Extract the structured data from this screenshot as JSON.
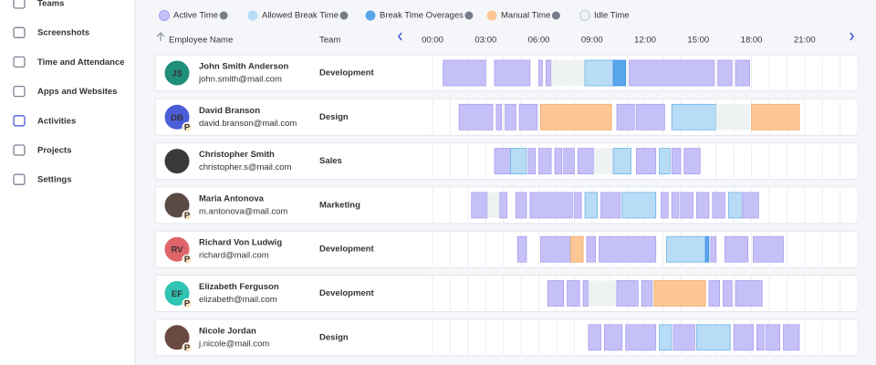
{
  "sidebar": [
    {
      "label": "Teams"
    },
    {
      "label": "Screenshots"
    },
    {
      "label": "Time and Attendance"
    },
    {
      "label": "Apps and Websites"
    },
    {
      "label": "Activities",
      "active": true
    },
    {
      "label": "Projects"
    },
    {
      "label": "Settings"
    }
  ],
  "legend": [
    {
      "label": "Active Time",
      "color": "#c6c0f8"
    },
    {
      "label": "Allowed Break Time",
      "color": "#b8dcf6"
    },
    {
      "label": "Break Time Overages",
      "color": "#5aa6ec"
    },
    {
      "label": "Manual Time",
      "color": "#fcc794"
    },
    {
      "label": "Idle Time",
      "color": "#eef2f2"
    }
  ],
  "columns": {
    "name": "Employee Name",
    "team": "Team"
  },
  "hours": [
    {
      "value": 0,
      "label": "00:00"
    },
    {
      "value": 3,
      "label": "03:00"
    },
    {
      "value": 6,
      "label": "06:00"
    },
    {
      "value": 9,
      "label": "09:00"
    },
    {
      "value": 12,
      "label": "12:00"
    },
    {
      "value": 15,
      "label": "15:00"
    },
    {
      "value": 18,
      "label": "18:00"
    },
    {
      "value": 21,
      "label": "21:00"
    }
  ],
  "rows": [
    {
      "initials": "JS",
      "avatar_color": "#1f8f7b",
      "name": "John Smith Anderson",
      "email": "john.smith@mail.com",
      "team": "Development",
      "segments": [
        [
          0.6,
          3.0,
          0
        ],
        [
          3.5,
          5.5,
          0
        ],
        [
          6.0,
          6.2,
          0
        ],
        [
          6.4,
          6.7,
          0
        ],
        [
          6.7,
          8.6,
          4
        ],
        [
          8.6,
          10.2,
          1
        ],
        [
          10.2,
          10.9,
          2
        ],
        [
          11.1,
          15.9,
          0
        ],
        [
          16.1,
          16.9,
          0
        ],
        [
          17.1,
          17.9,
          0
        ]
      ]
    },
    {
      "initials": "DB",
      "avatar_color": "#4c5dd8",
      "badge": "P",
      "name": "David Branson",
      "email": "david.branson@mail.com",
      "team": "Design",
      "segments": [
        [
          1.5,
          3.4,
          0
        ],
        [
          3.6,
          3.9,
          0
        ],
        [
          4.1,
          4.7,
          0
        ],
        [
          4.9,
          5.9,
          0
        ],
        [
          6.1,
          10.1,
          3
        ],
        [
          10.4,
          11.4,
          0
        ],
        [
          11.5,
          13.1,
          0
        ],
        [
          13.5,
          16.0,
          1
        ],
        [
          16.0,
          17.9,
          4
        ],
        [
          18.0,
          20.7,
          3
        ]
      ]
    },
    {
      "name": "Christopher Smith",
      "avatar_color": "#3a3a3a",
      "email": "christopher.s@mail.com",
      "team": "Sales",
      "segments": [
        [
          3.5,
          4.4,
          0
        ],
        [
          4.4,
          5.3,
          1
        ],
        [
          5.4,
          5.8,
          0
        ],
        [
          6.0,
          6.7,
          0
        ],
        [
          6.9,
          7.3,
          0
        ],
        [
          7.4,
          8.0,
          0
        ],
        [
          8.2,
          9.1,
          0
        ],
        [
          9.1,
          10.2,
          4
        ],
        [
          10.2,
          11.2,
          1
        ],
        [
          11.5,
          12.6,
          0
        ],
        [
          12.8,
          13.4,
          1
        ],
        [
          13.5,
          14.0,
          0
        ],
        [
          14.2,
          15.1,
          0
        ]
      ]
    },
    {
      "name": "Maria Antonova",
      "avatar_color": "#5a4a44",
      "badge": "P",
      "email": "m.antonova@mail.com",
      "team": "Marketing",
      "segments": [
        [
          2.2,
          3.1,
          0
        ],
        [
          3.1,
          3.8,
          4
        ],
        [
          3.8,
          4.2,
          0
        ],
        [
          4.7,
          5.3,
          0
        ],
        [
          5.5,
          7.9,
          0
        ],
        [
          8.0,
          8.4,
          0
        ],
        [
          8.6,
          9.3,
          1
        ],
        [
          9.5,
          10.6,
          0
        ],
        [
          10.7,
          12.6,
          1
        ],
        [
          12.9,
          13.3,
          0
        ],
        [
          13.5,
          13.9,
          0
        ],
        [
          14.0,
          14.7,
          0
        ],
        [
          14.9,
          15.6,
          0
        ],
        [
          15.8,
          16.5,
          0
        ],
        [
          16.7,
          17.5,
          1
        ],
        [
          17.5,
          18.4,
          0
        ]
      ]
    },
    {
      "initials": "RV",
      "avatar_color": "#e0656a",
      "badge": "P",
      "name": "Richard Von Ludwig",
      "email": "richard@mail.com",
      "team": "Development",
      "segments": [
        [
          4.8,
          5.3,
          0
        ],
        [
          6.1,
          7.8,
          0
        ],
        [
          7.8,
          8.5,
          3
        ],
        [
          8.7,
          9.2,
          0
        ],
        [
          9.4,
          12.6,
          0
        ],
        [
          13.2,
          15.4,
          1
        ],
        [
          15.4,
          15.6,
          2
        ],
        [
          15.7,
          16.0,
          0
        ],
        [
          16.5,
          17.8,
          0
        ],
        [
          18.1,
          19.8,
          0
        ]
      ]
    },
    {
      "initials": "EF",
      "avatar_color": "#2fc4b4",
      "badge": "P",
      "name": "Elizabeth Ferguson",
      "email": "elizabeth@mail.com",
      "team": "Development",
      "segments": [
        [
          6.5,
          7.4,
          0
        ],
        [
          7.6,
          8.3,
          0
        ],
        [
          8.5,
          8.8,
          0
        ],
        [
          8.8,
          10.4,
          4
        ],
        [
          10.4,
          11.6,
          0
        ],
        [
          11.8,
          12.4,
          0
        ],
        [
          12.5,
          15.4,
          3
        ],
        [
          15.6,
          16.2,
          0
        ],
        [
          16.4,
          16.9,
          0
        ],
        [
          17.1,
          18.6,
          0
        ]
      ]
    },
    {
      "name": "Nicole Jordan",
      "avatar_color": "#6a4a40",
      "badge": "P",
      "email": "j.nicole@mail.com",
      "team": "Design",
      "segments": [
        [
          8.8,
          9.5,
          0
        ],
        [
          9.7,
          10.7,
          0
        ],
        [
          10.9,
          12.6,
          0
        ],
        [
          12.8,
          13.5,
          1
        ],
        [
          13.6,
          14.8,
          0
        ],
        [
          14.9,
          16.8,
          1
        ],
        [
          17.0,
          18.1,
          0
        ],
        [
          18.3,
          18.7,
          0
        ],
        [
          18.8,
          19.6,
          0
        ],
        [
          19.8,
          20.7,
          0
        ]
      ]
    }
  ]
}
